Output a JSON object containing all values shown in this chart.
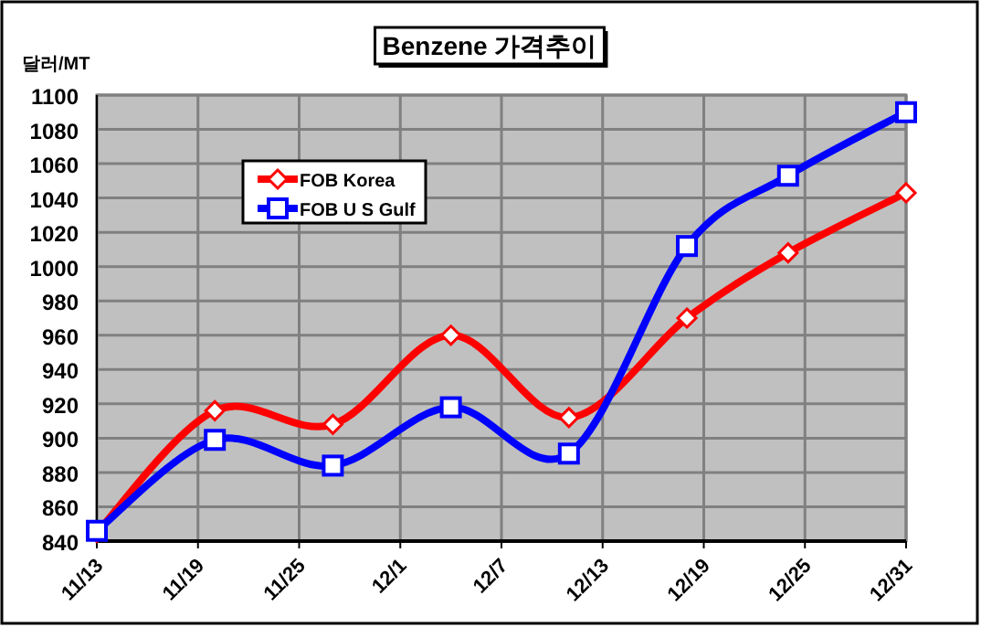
{
  "chart_data": {
    "type": "line",
    "title": "Benzene 가격추이",
    "ylabel": "달러/MT",
    "x": [
      "--11-13",
      "--11-20",
      "--11-27",
      "--12-04",
      "--12-11",
      "--12-18",
      "--12-24",
      "--12-31"
    ],
    "series": [
      {
        "name": "FOB Korea",
        "color": "#ff0000",
        "marker": "diamond",
        "values": [
          845,
          916,
          908,
          960,
          912,
          970,
          1008,
          1043
        ]
      },
      {
        "name": "FOB U S Gulf",
        "color": "#0000ff",
        "marker": "square",
        "values": [
          846,
          899,
          884,
          918,
          891,
          1012,
          1053,
          1090
        ]
      }
    ],
    "xlim": [
      "--11-13",
      "--12-31"
    ],
    "xticks": [
      {
        "value": "--11-13",
        "label": "11/13"
      },
      {
        "value": "--11-19",
        "label": "11/19"
      },
      {
        "value": "--11-25",
        "label": "11/25"
      },
      {
        "value": "--12-01",
        "label": "12/1"
      },
      {
        "value": "--12-07",
        "label": "12/7"
      },
      {
        "value": "--12-13",
        "label": "12/13"
      },
      {
        "value": "--12-19",
        "label": "12/19"
      },
      {
        "value": "--12-25",
        "label": "12/25"
      },
      {
        "value": "--12-31",
        "label": "12/31"
      }
    ],
    "ylim": [
      840,
      1100
    ],
    "yticks": [
      840,
      860,
      880,
      900,
      920,
      940,
      960,
      980,
      1000,
      1020,
      1040,
      1060,
      1080,
      1100
    ],
    "grid": true,
    "legend": "top left"
  }
}
